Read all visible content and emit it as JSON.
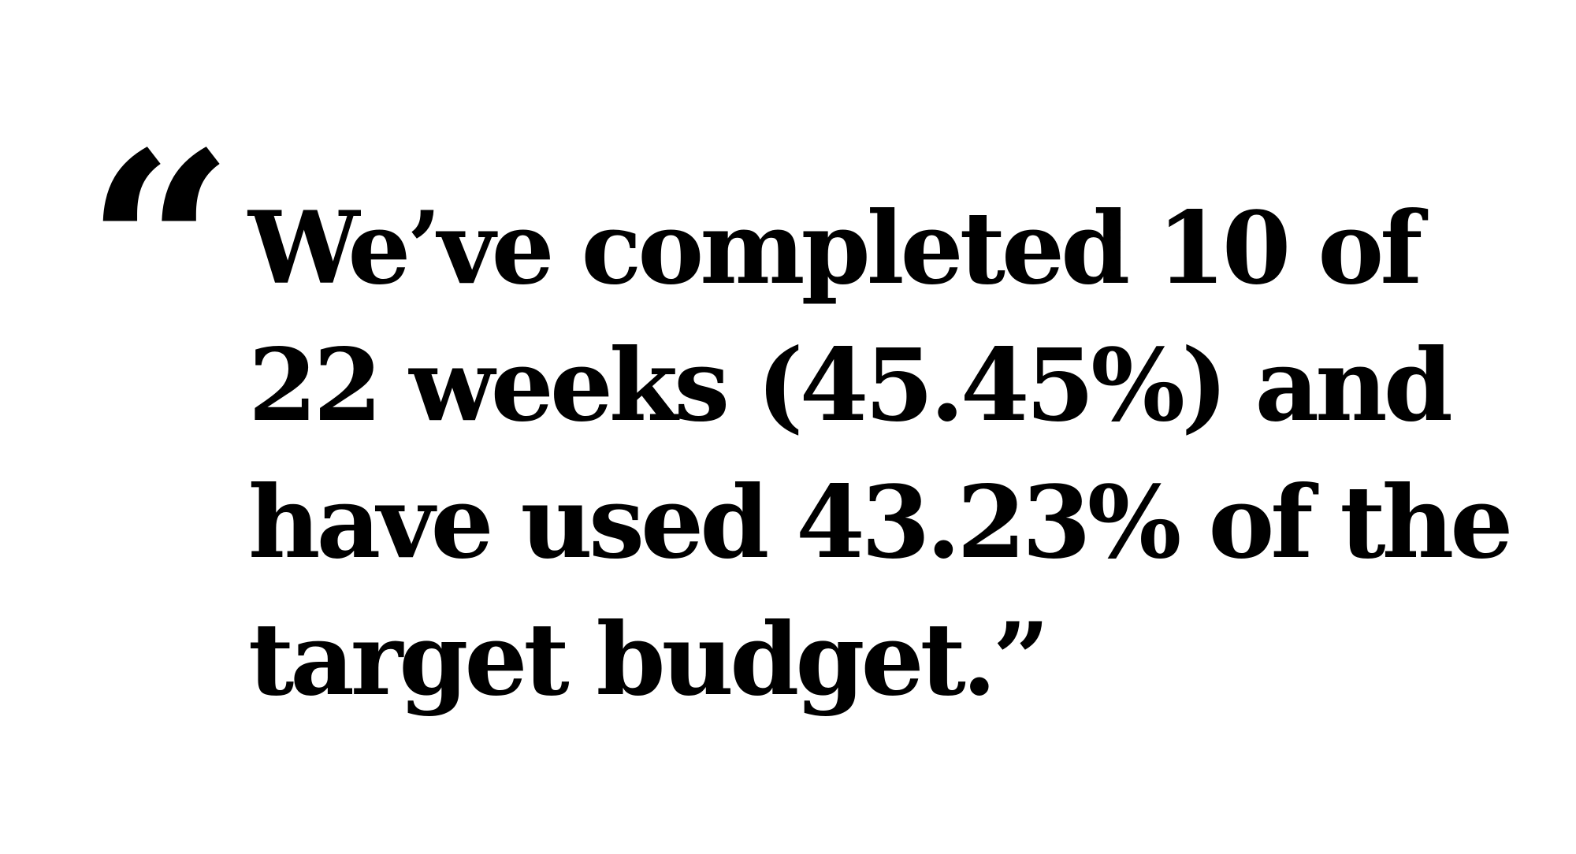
{
  "quote": {
    "open_mark": "“",
    "lines": [
      "We’ve completed 10 of",
      "22 weeks (45.45%) and",
      "have used 43.23% of the",
      "target budget.”"
    ]
  },
  "colors": {
    "text": "#000000",
    "background": "#ffffff"
  }
}
